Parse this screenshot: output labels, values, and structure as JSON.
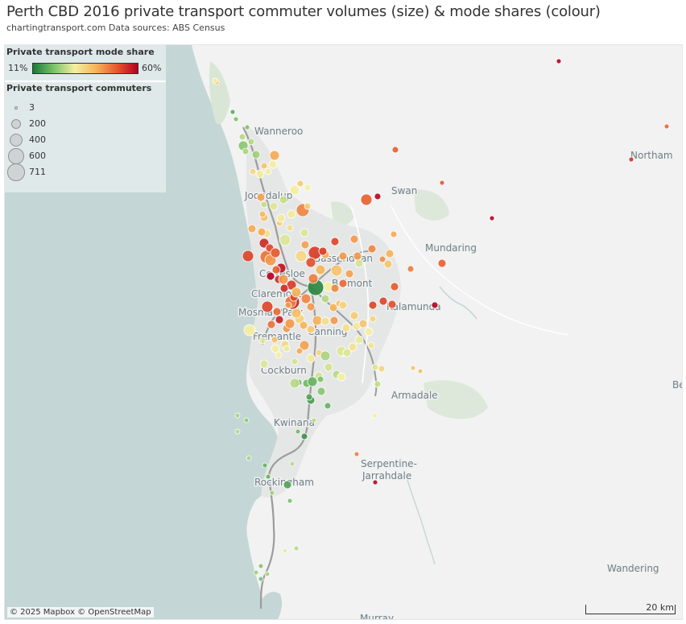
{
  "title": "Perth CBD 2016 private transport commuter volumes (size) & mode shares (colour)",
  "subtitle": "chartingtransport.com  Data sources: ABS Census",
  "legend": {
    "mode_share_title": "Private transport mode share",
    "mode_share_min": "11%",
    "mode_share_max": "60%",
    "mode_share_range": [
      11,
      60
    ],
    "colors": [
      "#1a7a36",
      "#7cc26c",
      "#f4efa0",
      "#f6b45a",
      "#e8592e",
      "#b30021"
    ],
    "commuters_title": "Private transport commuters",
    "size_steps": [
      {
        "label": "3",
        "value": 3
      },
      {
        "label": "200",
        "value": 200
      },
      {
        "label": "400",
        "value": 400
      },
      {
        "label": "600",
        "value": 600
      },
      {
        "label": "711",
        "value": 711
      }
    ]
  },
  "places": [
    {
      "label": "Wanneroo"
    },
    {
      "label": "Northam"
    },
    {
      "label": "Joondalup"
    },
    {
      "label": "Swan"
    },
    {
      "label": "Mundaring"
    },
    {
      "label": "Bassendean"
    },
    {
      "label": "Cottesloe"
    },
    {
      "label": "Belmont"
    },
    {
      "label": "Claremont"
    },
    {
      "label": "Kalamunda"
    },
    {
      "label": "Mosman Park"
    },
    {
      "label": "Fremantle"
    },
    {
      "label": "Canning"
    },
    {
      "label": "Cockburn"
    },
    {
      "label": "Armadale"
    },
    {
      "label": "Beverley"
    },
    {
      "label": "Kwinana"
    },
    {
      "label": "Serpentine-"
    },
    {
      "label": "Jarrahdale"
    },
    {
      "label": "Rockingham"
    },
    {
      "label": "Wandering"
    },
    {
      "label": "Murray"
    }
  ],
  "attribution": "© 2025 Mapbox © OpenStreetMap",
  "scale_label": "20 km"
}
